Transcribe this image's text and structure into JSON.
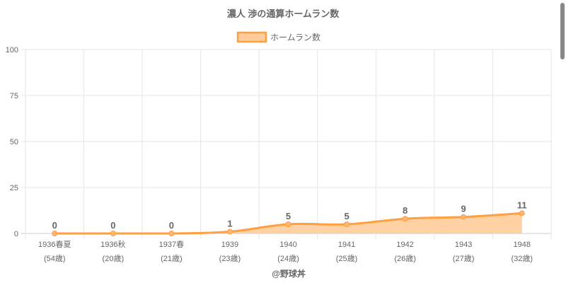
{
  "chart_data": {
    "type": "line",
    "title": "濃人 渉の通算ホームラン数",
    "legend": {
      "label": "ホームラン数",
      "placement": "top-center"
    },
    "categories": [
      "1936春夏",
      "1936秋",
      "1937春",
      "1939",
      "1940",
      "1941",
      "1942",
      "1943",
      "1948"
    ],
    "sublabels": [
      "(54歳)",
      "(20歳)",
      "(21歳)",
      "(23歳)",
      "(24歳)",
      "(25歳)",
      "(26歳)",
      "(27歳)",
      "(32歳)"
    ],
    "values": [
      0,
      0,
      0,
      1,
      5,
      5,
      8,
      9,
      11
    ],
    "ylim": [
      0,
      100
    ],
    "yticks": [
      "0",
      "25",
      "50",
      "75",
      "100"
    ],
    "grid": true,
    "filled": true,
    "xlabel": "",
    "ylabel": "",
    "colors": {
      "line": "#ff9f40",
      "fill": "#ffcc99",
      "text": "#666666",
      "grid": "#e5e5e5"
    }
  },
  "footer": "@野球丼"
}
